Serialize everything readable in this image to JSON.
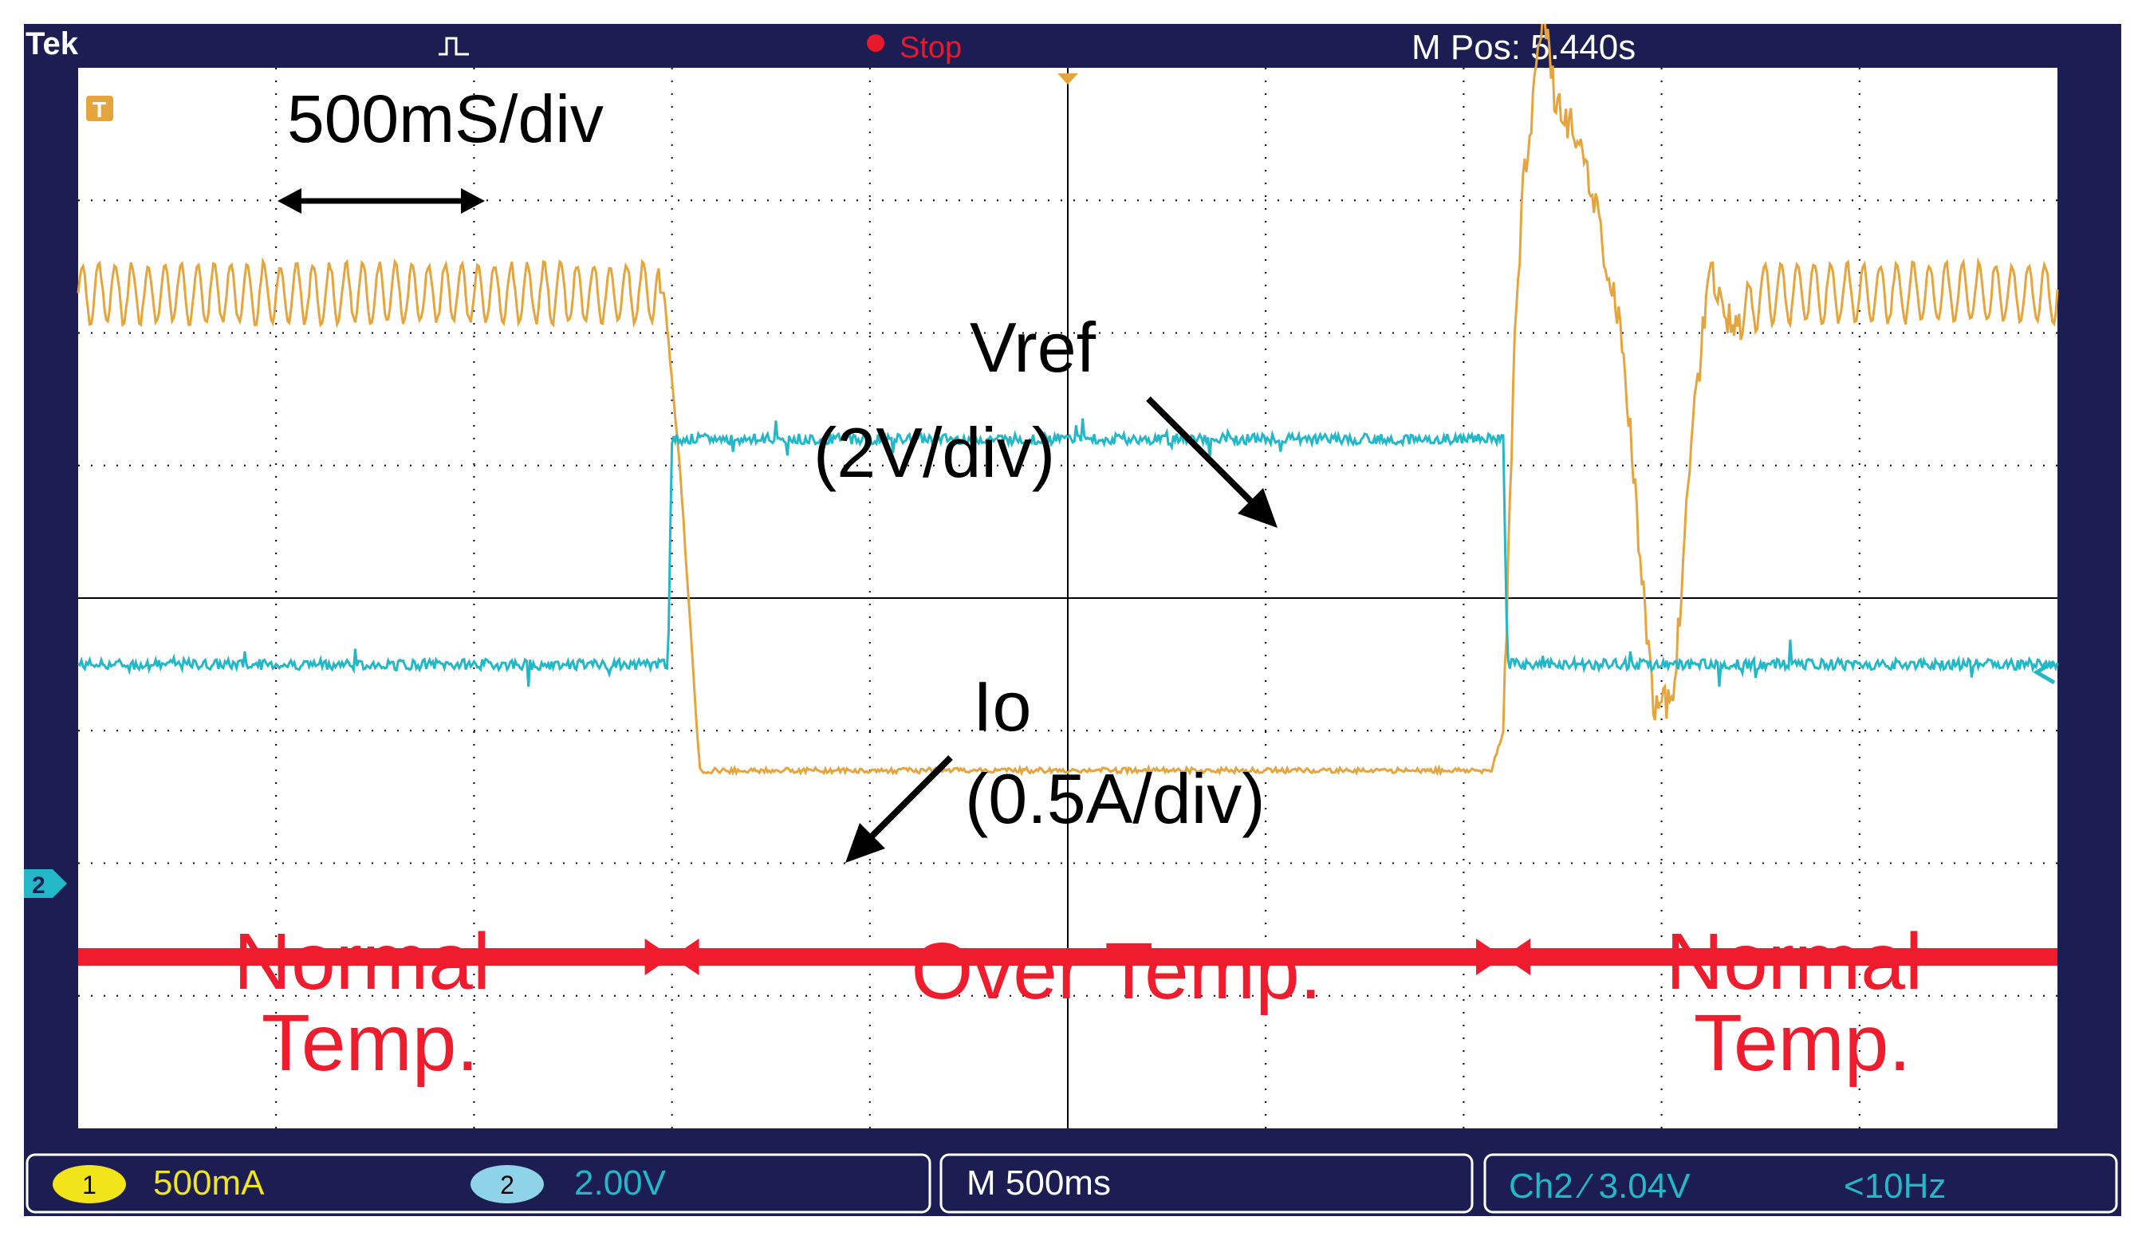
{
  "header": {
    "brand": "Tek",
    "acq_icon": "pulse-acquire-icon",
    "run_state": "Stop",
    "run_state_color": "#e8192c",
    "m_pos": "M Pos: 5.440s"
  },
  "markers": {
    "trigger_level": "T",
    "ch2_ground": "2"
  },
  "annotations": {
    "timebase": "500mS/div",
    "vref_line1": "Vref",
    "vref_line2": "(2V/div)",
    "io_line1": "Io",
    "io_line2": "(0.5A/div)",
    "normal1_line1": "Normal",
    "normal1_line2": "Temp.",
    "over": "Over Temp.",
    "normal2_line1": "Normal",
    "normal2_line2": "Temp."
  },
  "footer": {
    "ch1_num": "1",
    "ch1_scale": "500mA",
    "ch2_num": "2",
    "ch2_scale": "2.00V",
    "timebase": "M 500ms",
    "trigger": "Ch2 ⁄ 3.04V",
    "freq": "<10Hz"
  },
  "colors": {
    "ch1": "#e6a53c",
    "ch2": "#22b8c8",
    "annotation_red": "#ee1c2c",
    "grid": "#000000",
    "frame": "#1c1d52"
  },
  "chart_data": {
    "type": "line",
    "x_unit": "s",
    "x_range": [
      0,
      5
    ],
    "divisions": {
      "x": 10,
      "y": 8
    },
    "regions": [
      {
        "label": "Normal Temp.",
        "x": [
          0,
          1.5
        ]
      },
      {
        "label": "Over Temp.",
        "x": [
          1.5,
          3.6
        ]
      },
      {
        "label": "Normal Temp.",
        "x": [
          3.6,
          5
        ]
      }
    ],
    "series": [
      {
        "name": "Io",
        "channel": 1,
        "color": "#e6a53c",
        "x": [
          0,
          1.48,
          1.52,
          1.57,
          3.57,
          3.6,
          3.63,
          3.65,
          3.7,
          3.73,
          3.8,
          3.9,
          3.98,
          4.03,
          4.08,
          4.12,
          4.18,
          4.25,
          5
        ],
        "y": [
          2.3,
          2.3,
          1.0,
          -1.3,
          -1.3,
          -1.0,
          2.0,
          3.1,
          4.4,
          3.8,
          3.4,
          2.0,
          -0.9,
          -0.7,
          1.3,
          2.5,
          2.0,
          2.3,
          2.3
        ]
      },
      {
        "name": "Vref",
        "channel": 2,
        "color": "#22b8c8",
        "x": [
          0,
          1.49,
          1.5,
          3.6,
          3.61,
          5
        ],
        "y": [
          -0.5,
          -0.5,
          1.2,
          1.2,
          -0.5,
          -0.5
        ]
      }
    ]
  }
}
